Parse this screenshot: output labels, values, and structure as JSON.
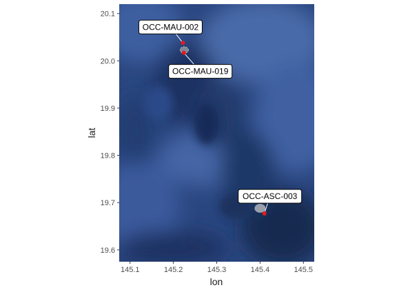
{
  "chart_data": {
    "type": "scatter",
    "title": "",
    "xlabel": "lon",
    "ylabel": "lat",
    "xlim": [
      145.075,
      145.525
    ],
    "ylim": [
      19.575,
      20.12
    ],
    "x_ticks": [
      "145.1",
      "145.2",
      "145.3",
      "145.4",
      "145.5"
    ],
    "x_tick_values": [
      145.1,
      145.2,
      145.3,
      145.4,
      145.5
    ],
    "y_ticks": [
      "19.6",
      "19.7",
      "19.8",
      "19.9",
      "20.0",
      "20.1"
    ],
    "y_tick_values": [
      19.6,
      19.7,
      19.8,
      19.9,
      20.0,
      20.1
    ],
    "background": "satellite imagery (dark blue ocean)",
    "grid": false,
    "points": [
      {
        "label": "OCC-MAU-002",
        "lon": 145.222,
        "lat": 20.038,
        "color": "#e41a1c"
      },
      {
        "label": "OCC-MAU-019",
        "lon": 145.224,
        "lat": 20.017,
        "color": "#e41a1c"
      },
      {
        "label": "OCC-ASC-003",
        "lon": 145.41,
        "lat": 19.677,
        "color": "#e41a1c"
      }
    ],
    "islands": [
      {
        "name": "small-island-north",
        "lon": 145.225,
        "lat": 20.023,
        "color": "#8a8f9c"
      },
      {
        "name": "small-island-south",
        "lon": 145.4,
        "lat": 19.688,
        "color": "#a9acb4"
      }
    ]
  },
  "colors": {
    "ocean_dark": "#142a55",
    "ocean_mid": "#2a4680",
    "ocean_light": "#4a6aa8",
    "axis_text": "#4d4d4d",
    "point": "#e41a1c"
  }
}
